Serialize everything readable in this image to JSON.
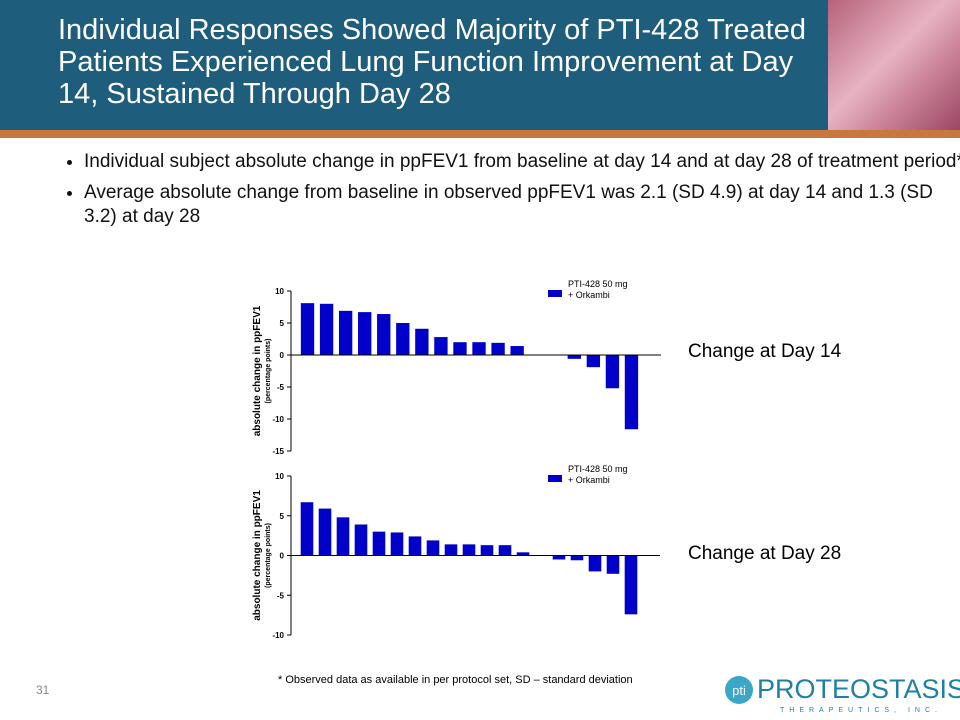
{
  "header": {
    "title": "Individual Responses Showed Majority of PTI-428 Treated Patients Experienced Lung Function Improvement at Day 14, Sustained Through Day 28"
  },
  "bullets": [
    "Individual subject absolute change in ppFEV1 from baseline at day 14 and at day 28 of treatment period*",
    "Average absolute change from baseline in observed ppFEV1 was 2.1 (SD 4.9) at day 14 and 1.3 (SD 3.2) at day 28"
  ],
  "footnote": "* Observed data as available in per protocol set, SD – standard deviation",
  "page_number": "31",
  "logo": {
    "mark": "pti",
    "name": "PROTEOSTASIS",
    "tagline": "THERAPEUTICS, INC."
  },
  "chart_data": [
    {
      "type": "bar",
      "annotation": "Change at Day 14",
      "y_label": "absolute change in ppFEV1",
      "y_sublabel": "(percentage points)",
      "categories": [
        null,
        null,
        null,
        null,
        null,
        null,
        null,
        null,
        null,
        null,
        null,
        null,
        null,
        null,
        null,
        null,
        null,
        null
      ],
      "series": [
        {
          "name": "PTI-428 50 mg\n+ Orkambi",
          "color": "#0000c8",
          "values": [
            8.1,
            8.0,
            6.9,
            6.7,
            6.4,
            5.0,
            4.1,
            2.8,
            2.0,
            2.0,
            1.9,
            1.4,
            0,
            0,
            -0.6,
            -1.9,
            -5.2,
            -11.6
          ]
        }
      ],
      "ylim": [
        -15,
        10
      ],
      "yticks": [
        -15,
        -10,
        -5,
        0,
        5,
        10
      ],
      "grid": false
    },
    {
      "type": "bar",
      "annotation": "Change at Day 28",
      "y_label": "absolute change in ppFEV1",
      "y_sublabel": "(percentage points)",
      "categories": [
        null,
        null,
        null,
        null,
        null,
        null,
        null,
        null,
        null,
        null,
        null,
        null,
        null,
        null,
        null,
        null,
        null,
        null,
        null
      ],
      "series": [
        {
          "name": "PTI-428 50 mg\n+ Orkambi",
          "color": "#0000c8",
          "values": [
            6.7,
            5.9,
            4.8,
            3.9,
            3.0,
            2.9,
            2.4,
            1.9,
            1.4,
            1.4,
            1.3,
            1.3,
            0.4,
            0,
            -0.5,
            -0.6,
            -2.0,
            -2.3,
            -7.4
          ]
        }
      ],
      "ylim": [
        -10,
        10
      ],
      "yticks": [
        -10,
        -5,
        0,
        5,
        10
      ],
      "grid": false
    }
  ]
}
